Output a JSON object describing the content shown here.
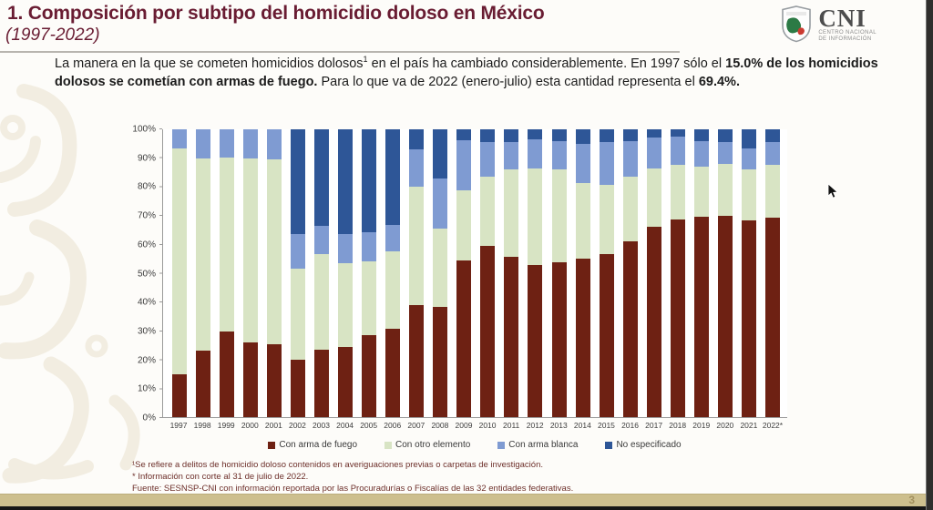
{
  "header": {
    "title": "1. Composición por subtipo del homicidio doloso en México",
    "subtitle": "(1997-2022)",
    "logo": {
      "acronym": "CNI",
      "org_line1": "CENTRO NACIONAL",
      "org_line2": "DE INFORMACIÓN"
    }
  },
  "intro": {
    "seg1": "La manera en la que se cometen homicidios dolosos",
    "footnote_ref": "1",
    "seg2": " en el país ha cambiado considerablemente. En 1997 sólo el ",
    "bold1": "15.0% de los homicidios dolosos se cometían con armas de fuego.",
    "seg3": " Para lo que va de 2022 (enero-julio) esta cantidad representa el ",
    "bold2": "69.4%."
  },
  "chart_data": {
    "type": "bar",
    "stacked": true,
    "percent_stacked": true,
    "title": "",
    "xlabel": "",
    "ylabel": "",
    "ylim": [
      0,
      100
    ],
    "y_ticks": [
      "0%",
      "10%",
      "20%",
      "30%",
      "40%",
      "50%",
      "60%",
      "70%",
      "80%",
      "90%",
      "100%"
    ],
    "grid": false,
    "legend_position": "bottom",
    "categories": [
      "1997",
      "1998",
      "1999",
      "2000",
      "2001",
      "2002",
      "2003",
      "2004",
      "2005",
      "2006",
      "2007",
      "2008",
      "2009",
      "2010",
      "2011",
      "2012",
      "2013",
      "2014",
      "2015",
      "2016",
      "2017",
      "2018",
      "2019",
      "2020",
      "2021",
      "2022*"
    ],
    "series": [
      {
        "name": "Con arma de fuego",
        "color": "#6e2113",
        "values": [
          15.0,
          23.2,
          29.9,
          26.1,
          25.4,
          19.9,
          23.5,
          24.5,
          28.4,
          30.6,
          38.9,
          38.3,
          54.4,
          59.5,
          55.7,
          52.7,
          53.9,
          55.2,
          56.6,
          61.0,
          66.0,
          68.8,
          69.5,
          70.0,
          68.4,
          69.4
        ]
      },
      {
        "name": "Con otro elemento",
        "color": "#d8e4c4",
        "values": [
          78.4,
          66.6,
          60.3,
          63.7,
          64.2,
          31.8,
          33.3,
          29.0,
          25.6,
          26.9,
          41.2,
          27.1,
          24.4,
          24.1,
          30.3,
          33.8,
          32.1,
          26.1,
          24.2,
          22.4,
          20.5,
          18.8,
          17.6,
          18.1,
          17.6,
          18.2
        ]
      },
      {
        "name": "Con arma blanca",
        "color": "#7f9bd2",
        "values": [
          6.6,
          10.2,
          9.8,
          10.2,
          10.4,
          11.8,
          9.7,
          10.0,
          10.3,
          9.2,
          12.9,
          17.6,
          17.4,
          12.0,
          9.5,
          10.0,
          10.0,
          13.7,
          14.7,
          12.6,
          10.6,
          10.0,
          8.9,
          7.5,
          7.4,
          7.9
        ]
      },
      {
        "name": "No especificado",
        "color": "#2e5697",
        "values": [
          0.0,
          0.0,
          0.0,
          0.0,
          0.0,
          36.5,
          33.5,
          36.5,
          35.7,
          33.3,
          7.0,
          17.0,
          3.8,
          4.4,
          4.5,
          3.5,
          4.0,
          5.0,
          4.5,
          4.0,
          2.9,
          2.4,
          4.0,
          4.4,
          6.6,
          4.5
        ]
      }
    ]
  },
  "footnotes": {
    "line1": "¹Se refiere a delitos de homicidio doloso contenidos en averiguaciones previas o carpetas de investigación.",
    "line2": "* Información con corte al 31 de julio de 2022.",
    "line3": "Fuente: SESNSP-CNI con información reportada por las Procuradurías o Fiscalías de las 32 entidades federativas."
  },
  "footer": {
    "page_number": "3"
  },
  "colors": {
    "accent_maroon": "#691c32",
    "footer_bar": "#cdbf8e",
    "axis": "#9a9a9a"
  }
}
